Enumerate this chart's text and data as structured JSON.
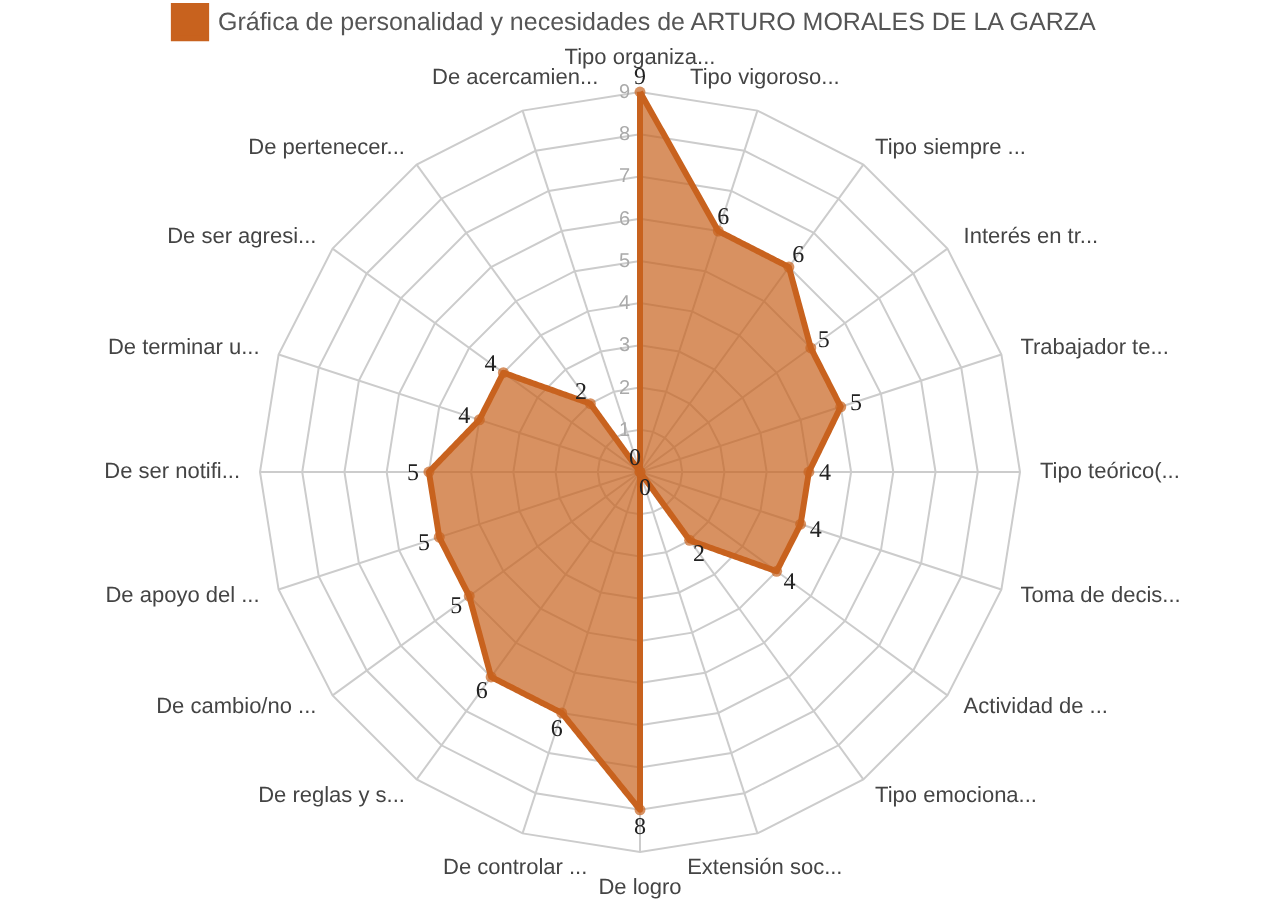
{
  "chart_data": {
    "type": "radar",
    "categories": [
      "Tipo organiza...",
      "Tipo vigoroso...",
      "Tipo siempre ...",
      "Interés en tr...",
      "Trabajador te...",
      "Tipo teórico(...",
      "Toma de decis...",
      "Actividad de ...",
      "Tipo emociona...",
      "Extensión soc...",
      "De logro",
      "De controlar ...",
      "De reglas y s...",
      "De cambio/no ...",
      "De apoyo del ...",
      "De ser notifi...",
      "De terminar u...",
      "De ser agresi...",
      "De pertenecer...",
      "De acercamien..."
    ],
    "series": [
      {
        "name": "Gráfica de personalidad y necesidades de ARTURO MORALES DE LA GARZA",
        "color": "#c8621e",
        "values": [
          9,
          6,
          6,
          5,
          5,
          4,
          4,
          4,
          2,
          0,
          8,
          6,
          6,
          5,
          5,
          5,
          4,
          4,
          2,
          0
        ]
      }
    ],
    "ylim": [
      0,
      9
    ],
    "yticks": [
      1,
      2,
      3,
      4,
      5,
      6,
      7,
      8,
      9
    ],
    "grid": true,
    "legend": "top",
    "data_labels": true,
    "marker": "circle",
    "line_style": "solid"
  }
}
